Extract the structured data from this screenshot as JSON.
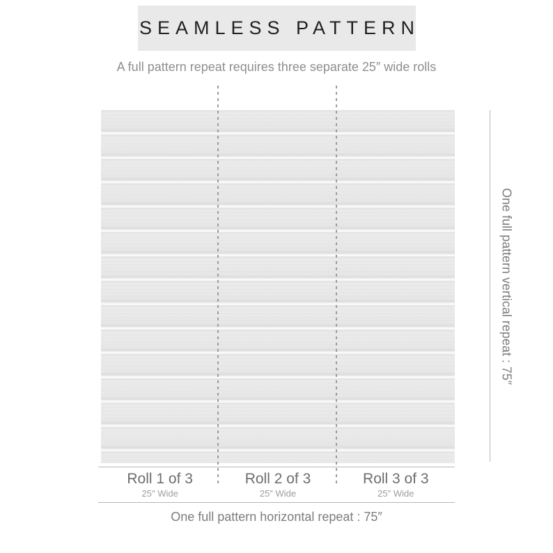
{
  "header": {
    "title": "SEAMLESS PATTERN"
  },
  "subtitle": "A full pattern repeat requires three separate 25″ wide rolls",
  "pattern": {
    "description": "white shiplap horizontal wood planks, seamless wallpaper swatch",
    "plank_count": 15,
    "plank_color": "#e8e8e8",
    "gap_color": "#f9f9f9"
  },
  "rolls": [
    {
      "label": "Roll 1 of 3",
      "width": "25″ Wide"
    },
    {
      "label": "Roll 2 of 3",
      "width": "25″ Wide"
    },
    {
      "label": "Roll 3 of 3",
      "width": "25″ Wide"
    }
  ],
  "horizontal_repeat_label": "One full pattern horizontal repeat : 75″",
  "vertical_repeat_label": "One full pattern vertical repeat : 75″",
  "colors": {
    "header_box": "#e9e9e9",
    "title_text": "#1f1f1f",
    "muted_text": "#8e8e8e",
    "roll_text": "#6d6d6d",
    "rule_line": "#b5b5b5",
    "dash_line": "#9b9b9b"
  }
}
